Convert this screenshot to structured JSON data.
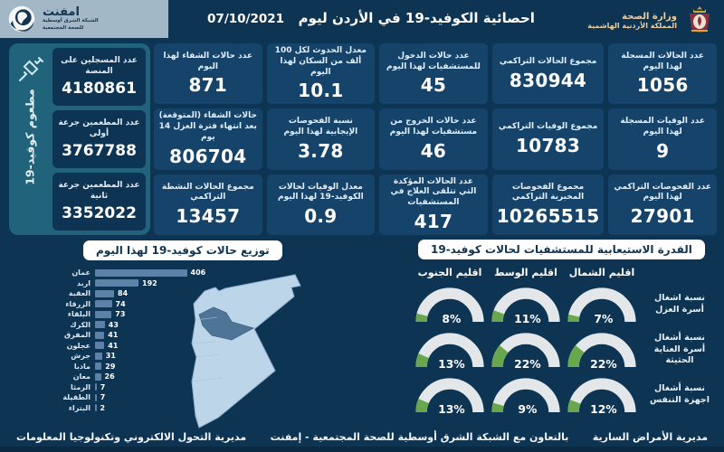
{
  "header": {
    "title": "احصائية الكوفيد-19 في الأردن ليوم",
    "date": "07/10/2021",
    "emphnet": {
      "name": "امفنت",
      "sub1": "الشبكة الشرق أوسطية",
      "sub2": "للصحة المجتمعية"
    },
    "ministry": {
      "line1": "وزارة الصحة",
      "line2": "المملكة الأردنية الهاشمية"
    }
  },
  "vaccination": {
    "side_label": "مطعوم كوفيد-19",
    "tiles": [
      {
        "label": "عدد المسجلين على المنصة",
        "value": "4180861"
      },
      {
        "label": "عدد المطعمين جرعة أولى",
        "value": "3767788"
      },
      {
        "label": "عدد المطعمين جرعة ثانية",
        "value": "3352022"
      }
    ]
  },
  "stats": {
    "tiles": [
      {
        "label": "عدد الحالات المسجلة لهذا اليوم",
        "value": "1056"
      },
      {
        "label": "مجموع الحالات التراكمي",
        "value": "830944"
      },
      {
        "label": "عدد حالات الدخول للمستشفيات لهذا اليوم",
        "value": "45"
      },
      {
        "label": "معدل الحدوث لكل 100 ألف من السكان لهذا اليوم",
        "value": "10.1"
      },
      {
        "label": "عدد حالات الشفاء لهذا اليوم",
        "value": "871"
      },
      {
        "label": "عدد الوفيات المسجلة لهذا اليوم",
        "value": "9"
      },
      {
        "label": "مجموع الوفيات التراكمي",
        "value": "10783"
      },
      {
        "label": "عدد حالات الخروج من مستشفيات لهذا اليوم",
        "value": "46"
      },
      {
        "label": "نسبة الفحوصات الإيجابية لهذا اليوم",
        "value": "3.78"
      },
      {
        "label": "حالات الشفاء (المتوقعة) بعد انتهاء فترة العزل 14 يوم",
        "value": "806704"
      },
      {
        "label": "عدد الفحوصات التراكمي لهذا اليوم",
        "value": "27901"
      },
      {
        "label": "مجموع الفحوصات المخبرية التراكمي",
        "value": "10265515"
      },
      {
        "label": "عدد الحالات المؤكدة التي تتلقى العلاج في المستشفيات",
        "value": "417"
      },
      {
        "label": "معدل الوفيات لحالات الكوفيد-19 لهذا اليوم",
        "value": "0.9"
      },
      {
        "label": "مجموع الحالات النشطة التراكمي",
        "value": "13457"
      }
    ]
  },
  "chart_data": [
    {
      "type": "bar",
      "orientation": "horizontal",
      "title": "توزيع حالات كوفيد-19 لهذا اليوم",
      "categories": [
        "عمان",
        "اربد",
        "العقبة",
        "الزرقاء",
        "البلقاء",
        "الكرك",
        "المفرق",
        "عجلون",
        "جرش",
        "مادبا",
        "معان",
        "الرمثا",
        "الطفيلة",
        "البتراء"
      ],
      "values": [
        406,
        192,
        84,
        74,
        73,
        43,
        41,
        41,
        31,
        29,
        26,
        7,
        7,
        2
      ],
      "xlim": [
        0,
        430
      ],
      "bar_color": "#5d82a8",
      "value_labels": true
    },
    {
      "type": "gauge-grid",
      "title": "القدرة الاستيعابية للمستشفيات لحالات كوفيد-19",
      "columns": [
        "اقليم الشمال",
        "اقليم الوسط",
        "اقليم الجنوب"
      ],
      "rows": [
        {
          "label": "نسبة اشغال أسرة العزل",
          "values": [
            7,
            11,
            8
          ]
        },
        {
          "label": "نسبة أشغال أسرة العناية الحثيثة",
          "values": [
            22,
            22,
            13
          ]
        },
        {
          "label": "نسبة أشغال اجهزة التنفس",
          "values": [
            12,
            9,
            13
          ]
        }
      ],
      "unit": "%",
      "track_color": "#e3e7ea",
      "fill_color": "#68a74d"
    }
  ],
  "map": {
    "region_highlight": "عمان",
    "base_color": "#bdd5e9",
    "highlight_color": "#4e7496"
  },
  "footer": {
    "right": "مديرية الأمراض السارية",
    "center": "بالتعاون مع الشبكة الشرق أوسطية للصحة المجتمعية - إمفنت",
    "left": "مديرية التحول الالكتروني وتكنولوجيا المعلومات"
  }
}
